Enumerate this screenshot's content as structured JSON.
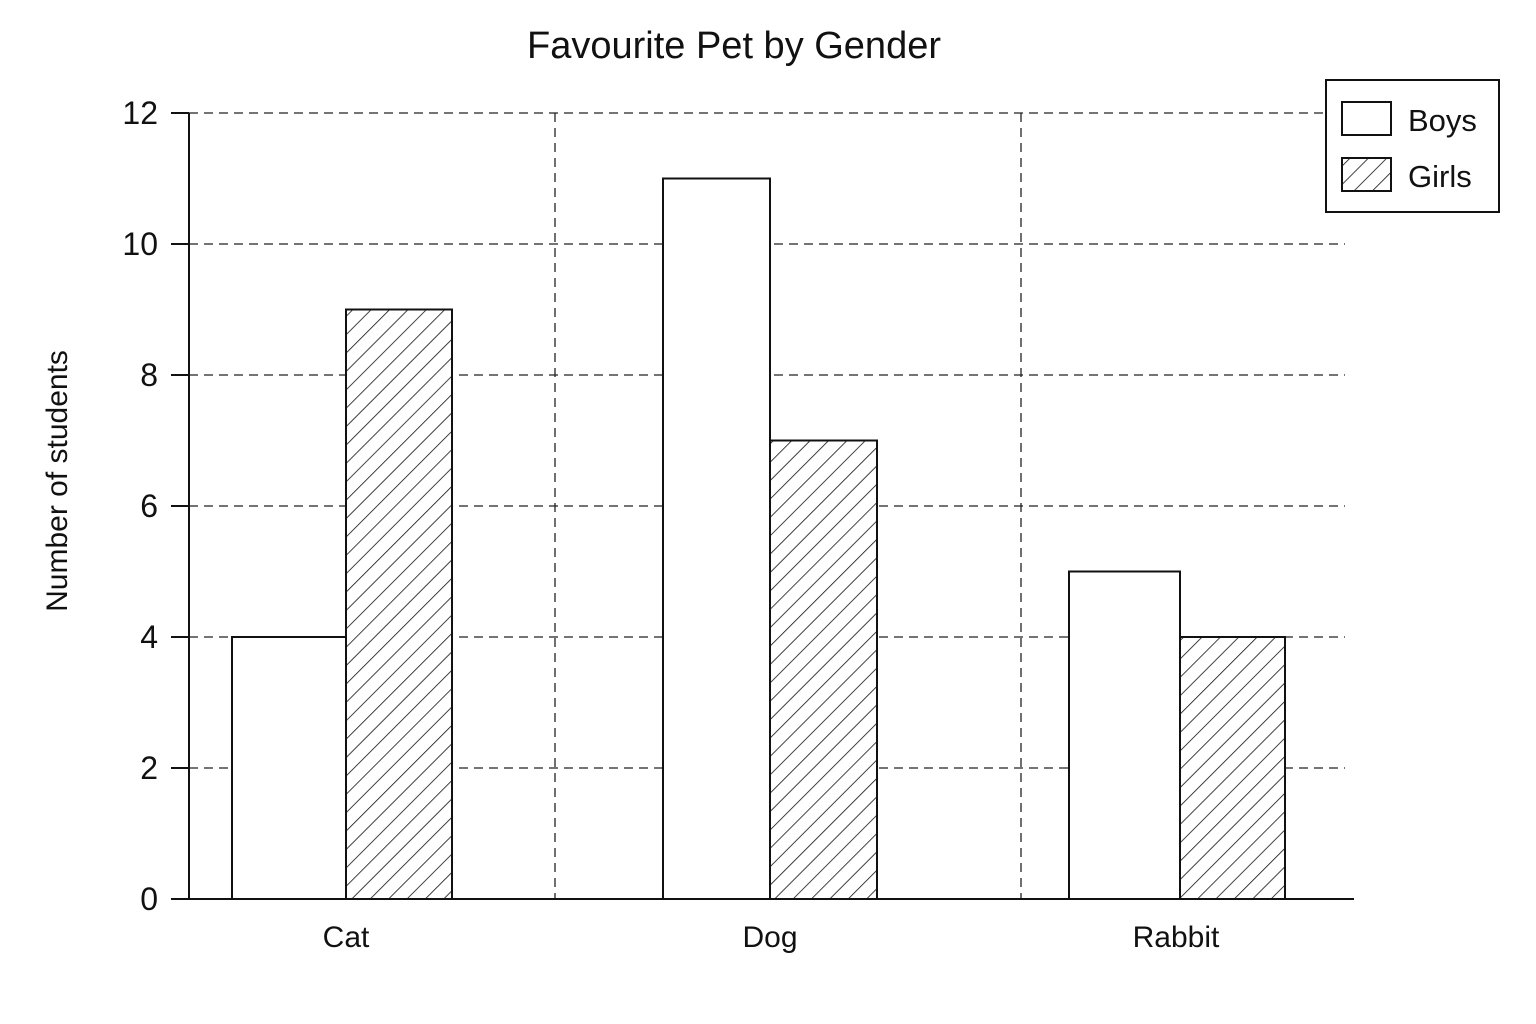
{
  "chart_data": {
    "type": "bar",
    "title": "Favourite Pet by Gender",
    "xlabel": "",
    "ylabel": "Number of students",
    "categories": [
      "Cat",
      "Dog",
      "Rabbit"
    ],
    "series": [
      {
        "name": "Boys",
        "values": [
          4,
          11,
          5
        ],
        "fill": "plain"
      },
      {
        "name": "Girls",
        "values": [
          9,
          7,
          4
        ],
        "fill": "hatched"
      }
    ],
    "ylim": [
      0,
      12
    ],
    "yticks": [
      "0",
      "2",
      "4",
      "6",
      "8",
      "10",
      "12"
    ],
    "grid": true,
    "grid_style": "dashed",
    "legend_position": "top-right",
    "colors": {
      "bar_fill": "#ffffff",
      "stroke": "#111111",
      "grid": "#222222"
    }
  }
}
